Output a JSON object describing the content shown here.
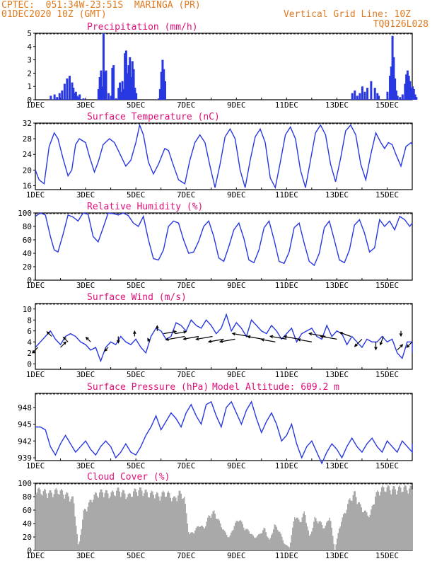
{
  "header": {
    "line1": "CPTEC:  051:34W-23:51S  MARINGA (PR)",
    "line2": "01DEC2020 10Z (GMT)",
    "grid_note": "Vertical Grid Line: 10Z",
    "code": "TQ0126L028"
  },
  "colors": {
    "header": "#e07a1f",
    "title": "#e0107a",
    "series": "#2838e0",
    "bars": "#2838e0",
    "cloud": "#a9a9a9",
    "wind_arrow": "#000000"
  },
  "chart_data": [
    {
      "type": "bar",
      "title": "Precipitation (mm/h)",
      "x_ticks": [
        "1DEC",
        "3DEC",
        "5DEC",
        "7DEC",
        "9DEC",
        "11DEC",
        "13DEC",
        "15DEC"
      ],
      "x_tick_days": [
        0,
        2,
        4,
        6,
        8,
        10,
        12,
        14
      ],
      "x_range_days": [
        0,
        15
      ],
      "ylim": [
        0,
        5
      ],
      "y_ticks": [
        0,
        1,
        2,
        3,
        4,
        5
      ],
      "x": [
        0.6,
        0.75,
        0.85,
        0.95,
        1.05,
        1.15,
        1.25,
        1.35,
        1.45,
        1.5,
        1.55,
        1.6,
        1.65,
        1.7,
        1.75,
        1.9,
        2.5,
        2.55,
        2.6,
        2.65,
        2.7,
        2.75,
        2.8,
        2.9,
        3.0,
        3.05,
        3.1,
        3.2,
        3.3,
        3.35,
        3.4,
        3.45,
        3.5,
        3.55,
        3.6,
        3.65,
        3.7,
        3.75,
        3.8,
        3.85,
        3.9,
        3.95,
        4.0,
        4.9,
        4.95,
        5.0,
        5.05,
        5.1,
        5.15,
        12.6,
        12.7,
        12.8,
        12.9,
        13.0,
        13.1,
        13.2,
        13.35,
        13.5,
        13.6,
        13.65,
        14.0,
        14.1,
        14.15,
        14.2,
        14.25,
        14.3,
        14.35,
        14.4,
        14.5,
        14.6,
        14.7,
        14.75,
        14.8,
        14.85,
        14.9,
        14.95,
        15.0,
        15.05,
        15.1,
        15.15
      ],
      "values": [
        0.3,
        0.4,
        0.2,
        0.5,
        0.7,
        1.2,
        1.6,
        1.8,
        1.3,
        0.9,
        0.5,
        0.6,
        0.3,
        0.2,
        0.4,
        0.1,
        0.8,
        1.7,
        2.2,
        1.0,
        5.0,
        2.1,
        2.2,
        0.5,
        0.3,
        2.4,
        2.6,
        0.1,
        0.9,
        1.3,
        0.6,
        1.4,
        0.8,
        3.5,
        3.7,
        2.0,
        2.6,
        3.2,
        1.7,
        2.9,
        2.3,
        0.9,
        0.5,
        0.1,
        0.8,
        2.1,
        3.0,
        2.3,
        1.4,
        0.5,
        0.7,
        0.3,
        0.5,
        1.0,
        0.6,
        0.9,
        1.4,
        0.9,
        0.5,
        0.3,
        0.6,
        1.8,
        2.5,
        4.8,
        3.2,
        1.6,
        0.7,
        0.3,
        0.2,
        0.4,
        1.2,
        1.9,
        2.2,
        1.8,
        1.4,
        0.9,
        1.0,
        0.8,
        0.4,
        0.2
      ]
    },
    {
      "type": "line",
      "title": "Surface Temperature (nC)",
      "x_ticks": [
        "1DEC",
        "3DEC",
        "5DEC",
        "7DEC",
        "9DEC",
        "11DEC",
        "13DEC",
        "15DEC"
      ],
      "x_tick_days": [
        0,
        2,
        4,
        6,
        8,
        10,
        12,
        14
      ],
      "x_range_days": [
        0,
        15
      ],
      "ylim": [
        15,
        32
      ],
      "y_ticks": [
        16,
        20,
        24,
        28,
        32
      ],
      "x": [
        0,
        0.15,
        0.35,
        0.55,
        0.75,
        0.9,
        1.1,
        1.3,
        1.45,
        1.6,
        1.75,
        2.0,
        2.15,
        2.35,
        2.5,
        2.7,
        2.95,
        3.15,
        3.3,
        3.45,
        3.6,
        3.8,
        4.0,
        4.15,
        4.3,
        4.5,
        4.7,
        4.9,
        5.15,
        5.3,
        5.45,
        5.7,
        5.95,
        6.15,
        6.35,
        6.55,
        6.75,
        6.95,
        7.15,
        7.35,
        7.55,
        7.75,
        7.95,
        8.15,
        8.35,
        8.55,
        8.75,
        8.95,
        9.15,
        9.35,
        9.55,
        9.75,
        9.95,
        10.15,
        10.35,
        10.55,
        10.75,
        10.95,
        11.15,
        11.35,
        11.55,
        11.75,
        11.95,
        12.15,
        12.35,
        12.55,
        12.75,
        12.95,
        13.15,
        13.35,
        13.55,
        13.75,
        13.9,
        14.05,
        14.2,
        14.35,
        14.55,
        14.75,
        14.95,
        15.1
      ],
      "values": [
        20,
        17.5,
        16.5,
        26,
        29.5,
        28,
        23,
        18.5,
        20,
        26.5,
        28,
        27,
        23.5,
        19.5,
        22,
        26.5,
        28,
        27,
        25,
        23,
        21,
        22.5,
        27,
        31.5,
        29,
        22,
        19,
        21.5,
        25.5,
        25,
        22,
        17.5,
        16.5,
        22.5,
        27,
        29,
        27,
        21,
        15.5,
        21.5,
        28.5,
        30.5,
        28,
        20,
        15.5,
        22.5,
        28.5,
        30.5,
        27,
        18,
        15.5,
        22,
        29,
        31,
        28,
        20,
        15.5,
        22.5,
        29.5,
        31.5,
        29,
        21.5,
        17,
        23,
        30,
        31.5,
        29,
        21.5,
        17.5,
        24,
        29.5,
        27,
        25.5,
        27,
        26.5,
        24,
        21,
        26,
        27,
        26.5
      ]
    },
    {
      "type": "line",
      "title": "Relative Humidity (%)",
      "x_ticks": [
        "1DEC",
        "3DEC",
        "5DEC",
        "7DEC",
        "9DEC",
        "11DEC",
        "13DEC",
        "15DEC"
      ],
      "x_tick_days": [
        0,
        2,
        4,
        6,
        8,
        10,
        12,
        14
      ],
      "x_range_days": [
        0,
        15
      ],
      "ylim": [
        0,
        100
      ],
      "y_ticks": [
        0,
        20,
        40,
        60,
        80,
        100
      ],
      "x": [
        0,
        0.2,
        0.4,
        0.6,
        0.75,
        0.9,
        1.1,
        1.3,
        1.5,
        1.7,
        1.9,
        2.1,
        2.3,
        2.5,
        2.7,
        2.9,
        3.1,
        3.3,
        3.5,
        3.7,
        3.9,
        4.1,
        4.3,
        4.5,
        4.7,
        4.9,
        5.1,
        5.3,
        5.5,
        5.7,
        5.9,
        6.1,
        6.3,
        6.5,
        6.7,
        6.9,
        7.1,
        7.3,
        7.5,
        7.7,
        7.9,
        8.1,
        8.3,
        8.5,
        8.7,
        8.9,
        9.1,
        9.3,
        9.5,
        9.7,
        9.9,
        10.1,
        10.3,
        10.5,
        10.7,
        10.9,
        11.1,
        11.3,
        11.5,
        11.7,
        11.9,
        12.1,
        12.3,
        12.5,
        12.7,
        12.9,
        13.1,
        13.3,
        13.5,
        13.7,
        13.9,
        14.1,
        14.3,
        14.5,
        14.7,
        14.9,
        15.1
      ],
      "values": [
        95,
        100,
        97,
        65,
        45,
        42,
        68,
        97,
        94,
        88,
        100,
        98,
        65,
        57,
        78,
        100,
        99,
        97,
        100,
        96,
        85,
        80,
        95,
        60,
        32,
        30,
        45,
        80,
        88,
        85,
        60,
        40,
        42,
        58,
        80,
        88,
        65,
        33,
        28,
        50,
        75,
        85,
        62,
        30,
        26,
        45,
        78,
        88,
        60,
        28,
        25,
        42,
        78,
        85,
        55,
        28,
        22,
        40,
        78,
        88,
        60,
        30,
        26,
        45,
        82,
        90,
        70,
        42,
        48,
        90,
        80,
        88,
        75,
        95,
        90,
        80,
        85
      ]
    },
    {
      "type": "line",
      "title": "Surface Wind (m/s)",
      "x_ticks": [
        "1DEC",
        "3DEC",
        "5DEC",
        "7DEC",
        "9DEC",
        "11DEC",
        "13DEC",
        "15DEC"
      ],
      "x_tick_days": [
        0,
        2,
        4,
        6,
        8,
        10,
        12,
        14
      ],
      "x_range_days": [
        0,
        15
      ],
      "ylim": [
        -1,
        11
      ],
      "y_ticks": [
        0,
        2,
        4,
        6,
        8,
        10
      ],
      "x": [
        0,
        0.2,
        0.4,
        0.6,
        0.8,
        1.0,
        1.2,
        1.4,
        1.6,
        1.8,
        2.0,
        2.2,
        2.4,
        2.6,
        2.8,
        3.0,
        3.2,
        3.4,
        3.6,
        3.8,
        4.0,
        4.2,
        4.4,
        4.6,
        4.8,
        5.0,
        5.2,
        5.4,
        5.6,
        5.8,
        6.0,
        6.2,
        6.4,
        6.6,
        6.8,
        7.0,
        7.2,
        7.4,
        7.6,
        7.8,
        8.0,
        8.2,
        8.4,
        8.6,
        8.8,
        9.0,
        9.2,
        9.4,
        9.6,
        9.8,
        10.0,
        10.2,
        10.4,
        10.6,
        10.8,
        11.0,
        11.2,
        11.4,
        11.6,
        11.8,
        12.0,
        12.2,
        12.4,
        12.6,
        12.8,
        13.0,
        13.2,
        13.4,
        13.6,
        13.8,
        14.0,
        14.2,
        14.4,
        14.6,
        14.8,
        15.0,
        15.1
      ],
      "values": [
        3,
        4,
        5,
        6,
        4.5,
        3.5,
        5,
        5.5,
        5,
        4,
        3.5,
        2.5,
        3,
        0.5,
        3,
        4,
        3.5,
        5,
        4,
        3.5,
        4.5,
        3,
        2,
        5,
        6.5,
        6,
        4.5,
        5,
        7.5,
        7,
        6,
        8,
        7,
        6.5,
        8,
        7,
        5.5,
        6.5,
        9,
        6,
        7.5,
        6.5,
        5,
        8,
        7,
        6,
        5.5,
        7,
        6,
        4.5,
        5.5,
        6.5,
        4,
        5.5,
        6,
        6.5,
        5,
        4.5,
        7,
        5,
        6,
        5.5,
        3.5,
        5,
        4,
        3,
        4.5,
        4,
        4,
        5,
        4,
        4.5,
        2,
        1,
        4,
        4,
        2
      ]
    },
    {
      "type": "line",
      "title": "Surface Pressure (hPa)",
      "annotation": "Model Altitude: 609.2 m",
      "x_ticks": [
        "1DEC",
        "3DEC",
        "5DEC",
        "7DEC",
        "9DEC",
        "11DEC",
        "13DEC",
        "15DEC"
      ],
      "x_tick_days": [
        0,
        2,
        4,
        6,
        8,
        10,
        12,
        14
      ],
      "x_range_days": [
        0,
        15
      ],
      "ylim": [
        938.5,
        950.5
      ],
      "y_ticks": [
        939,
        942,
        945,
        948
      ],
      "x": [
        0,
        0.2,
        0.4,
        0.6,
        0.8,
        1.0,
        1.2,
        1.4,
        1.6,
        1.8,
        2.0,
        2.2,
        2.4,
        2.6,
        2.8,
        3.0,
        3.2,
        3.4,
        3.6,
        3.8,
        4.0,
        4.2,
        4.4,
        4.6,
        4.8,
        5.0,
        5.2,
        5.4,
        5.6,
        5.8,
        6.0,
        6.2,
        6.4,
        6.6,
        6.8,
        7.0,
        7.2,
        7.4,
        7.6,
        7.8,
        8.0,
        8.2,
        8.4,
        8.6,
        8.8,
        9.0,
        9.2,
        9.4,
        9.6,
        9.8,
        10.0,
        10.2,
        10.4,
        10.6,
        10.8,
        11.0,
        11.2,
        11.4,
        11.6,
        11.8,
        12.0,
        12.2,
        12.4,
        12.6,
        12.8,
        13.0,
        13.2,
        13.4,
        13.6,
        13.8,
        14.0,
        14.2,
        14.4,
        14.6,
        14.8,
        15.0,
        15.1
      ],
      "values": [
        944.5,
        944.5,
        944,
        941,
        939.5,
        941.5,
        943,
        941.5,
        940,
        941,
        942,
        940.5,
        939.5,
        941,
        942,
        941,
        939,
        940,
        941.5,
        940,
        939.5,
        941,
        943,
        944.5,
        946.5,
        944,
        945.5,
        947,
        946,
        944.5,
        947,
        948.5,
        946.5,
        945,
        948.5,
        949,
        946.5,
        944.5,
        948,
        949,
        947,
        945,
        947.5,
        949,
        946,
        943.5,
        945.5,
        947,
        945,
        942,
        943,
        945,
        941.5,
        939,
        941,
        942,
        940,
        938,
        940,
        941.5,
        940.5,
        939,
        941,
        942.5,
        941,
        940,
        941.5,
        942.5,
        941,
        940,
        942,
        941,
        940,
        942,
        941,
        940,
        941.5
      ]
    },
    {
      "type": "area",
      "title": "Cloud Cover (%)",
      "x_ticks": [
        "1DEC",
        "3DEC",
        "5DEC",
        "7DEC",
        "9DEC",
        "11DEC",
        "13DEC",
        "15DEC"
      ],
      "x_tick_days": [
        0,
        2,
        4,
        6,
        8,
        10,
        12,
        14
      ],
      "x_range_days": [
        0,
        15
      ],
      "ylim": [
        0,
        100
      ],
      "y_ticks": [
        0,
        20,
        40,
        60,
        80,
        100
      ],
      "x": [
        0,
        0.3,
        0.6,
        0.9,
        1.2,
        1.5,
        1.7,
        1.9,
        2.1,
        2.3,
        2.5,
        2.7,
        2.9,
        3.1,
        3.3,
        3.5,
        3.7,
        3.9,
        4.1,
        4.3,
        4.5,
        4.7,
        4.9,
        5.1,
        5.3,
        5.5,
        5.7,
        5.9,
        6.1,
        6.3,
        6.5,
        6.7,
        6.9,
        7.1,
        7.3,
        7.5,
        7.7,
        7.9,
        8.1,
        8.3,
        8.5,
        8.7,
        8.9,
        9.1,
        9.3,
        9.5,
        9.7,
        9.9,
        10.1,
        10.3,
        10.5,
        10.7,
        10.9,
        11.1,
        11.3,
        11.5,
        11.7,
        11.9,
        12.1,
        12.3,
        12.5,
        12.7,
        12.9,
        13.1,
        13.3,
        13.5,
        13.7,
        13.9,
        14.1,
        14.3,
        14.5,
        14.7,
        14.9,
        15.1
      ],
      "values": [
        95,
        92,
        90,
        94,
        88,
        80,
        5,
        60,
        72,
        85,
        90,
        93,
        88,
        90,
        95,
        90,
        85,
        92,
        95,
        93,
        88,
        90,
        85,
        90,
        88,
        80,
        90,
        85,
        25,
        30,
        40,
        35,
        55,
        60,
        45,
        30,
        20,
        40,
        50,
        35,
        30,
        20,
        25,
        35,
        15,
        40,
        30,
        10,
        5,
        55,
        45,
        60,
        20,
        50,
        45,
        35,
        55,
        0,
        40,
        60,
        80,
        90,
        70,
        60,
        55,
        85,
        95,
        98,
        97,
        96,
        97,
        98,
        97,
        96
      ]
    }
  ],
  "wind_arrows": {
    "unit_note": "direction in degrees (toward, 0 = east, counterclockwise), length relative",
    "x_days": [
      0.1,
      0.65,
      1.0,
      1.3,
      2.2,
      2.9,
      3.3,
      3.95,
      4.55,
      4.85,
      5.1,
      5.55,
      5.95,
      6.5,
      7.05,
      7.5,
      7.95,
      8.5,
      9.05,
      9.55,
      10.0,
      10.5,
      11.0,
      11.55,
      12.0,
      12.55,
      13.0,
      13.55,
      13.85,
      14.4,
      14.55,
      15.0
    ],
    "y_values": [
      3,
      5,
      3,
      4,
      4,
      3,
      5,
      5,
      4,
      6,
      5.5,
      5.5,
      5,
      5,
      5,
      4.5,
      4.5,
      5,
      4.5,
      4,
      4.5,
      4.5,
      4,
      5,
      4.5,
      5,
      4.5,
      4,
      5,
      2.5,
      6,
      4
    ],
    "angle_deg": [
      225,
      135,
      45,
      135,
      135,
      225,
      270,
      90,
      120,
      90,
      10,
      10,
      190,
      190,
      190,
      190,
      190,
      170,
      170,
      170,
      170,
      170,
      170,
      170,
      170,
      160,
      225,
      270,
      250,
      45,
      270,
      225
    ],
    "len": [
      0.6,
      0.5,
      0.6,
      0.5,
      0.5,
      0.4,
      0.5,
      0.4,
      0.3,
      0.4,
      1.0,
      0.9,
      1.5,
      1.2,
      1.3,
      1.2,
      1.2,
      1.3,
      1.2,
      1.1,
      1.3,
      1.2,
      1.1,
      1.3,
      1.3,
      0.9,
      0.8,
      0.6,
      0.7,
      0.6,
      0.4,
      0.6
    ]
  }
}
